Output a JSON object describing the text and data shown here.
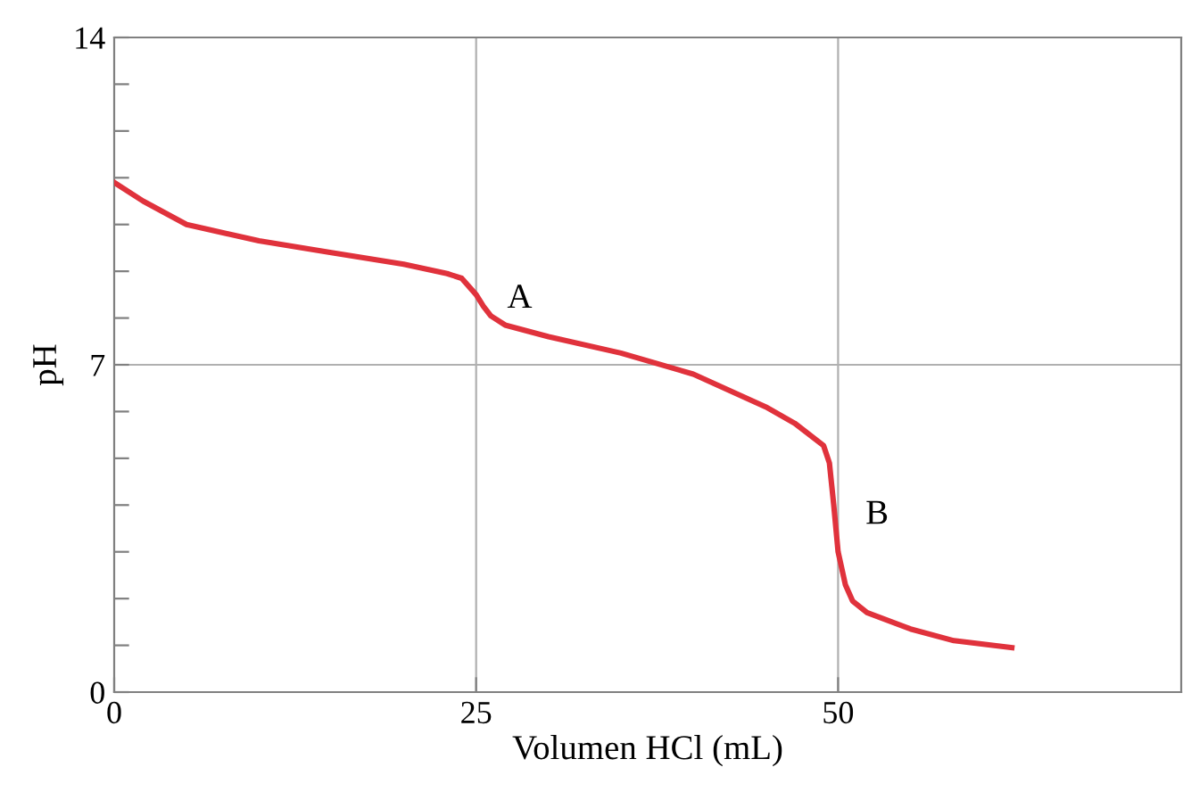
{
  "chart_data": {
    "type": "line",
    "xlabel": "Volumen HCl (mL)",
    "ylabel": "pH",
    "x": [
      0,
      2,
      5,
      10,
      15,
      20,
      23,
      24,
      25,
      25.5,
      26,
      27,
      30,
      35,
      40,
      45,
      47,
      49,
      49.4,
      49.7,
      50,
      50.5,
      51,
      52,
      55,
      58,
      62
    ],
    "series": [
      {
        "color": "#e0323c",
        "values": [
          10.9,
          10.5,
          10.0,
          9.65,
          9.4,
          9.15,
          8.95,
          8.85,
          8.5,
          8.25,
          8.05,
          7.85,
          7.6,
          7.25,
          6.8,
          6.1,
          5.75,
          5.27,
          4.9,
          4.0,
          3.0,
          2.3,
          1.95,
          1.7,
          1.35,
          1.1,
          0.95
        ]
      }
    ],
    "xlim": [
      0,
      73.7
    ],
    "ylim": [
      0,
      14
    ],
    "xticks": [
      0,
      25,
      50
    ],
    "yticks": [
      0,
      {
        "value": 1,
        "label": null
      },
      {
        "value": 2,
        "label": null
      },
      {
        "value": 3,
        "label": null
      },
      {
        "value": 4,
        "label": null
      },
      {
        "value": 5,
        "label": null
      },
      {
        "value": 6,
        "label": null
      },
      7,
      {
        "value": 8,
        "label": null
      },
      {
        "value": 9,
        "label": null
      },
      {
        "value": 10,
        "label": null
      },
      {
        "value": 11,
        "label": null
      },
      {
        "value": 12,
        "label": null
      },
      {
        "value": 13,
        "label": null
      },
      14
    ],
    "ref_lines": [
      {
        "axis": "x",
        "value": 25,
        "color": "#b0b0b0"
      },
      {
        "axis": "x",
        "value": 50,
        "color": "#b0b0b0"
      },
      {
        "axis": "y",
        "value": 7,
        "color": "#b0b0b0"
      }
    ],
    "annotations": [
      "A",
      "B"
    ],
    "grid": false,
    "legend": false,
    "marker": "none",
    "line_style": "solid"
  }
}
